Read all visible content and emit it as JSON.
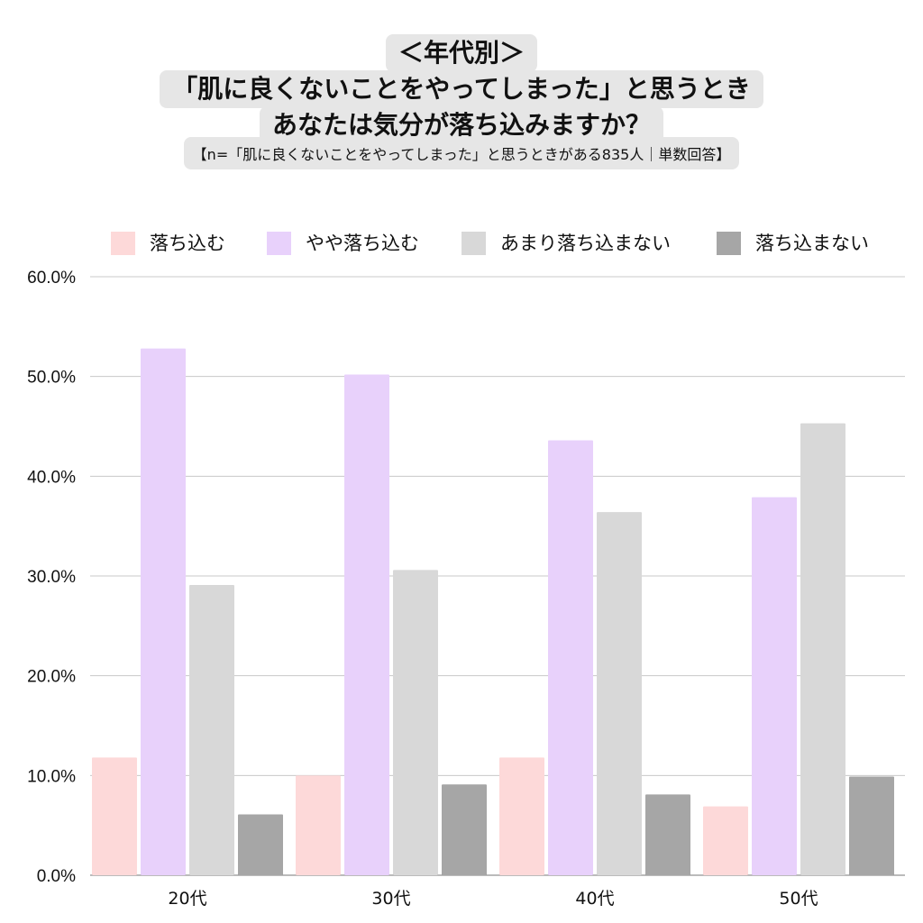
{
  "title": {
    "line1": "＜年代別＞",
    "line2": "「肌に良くないことをやってしまった」と思うとき",
    "line3": "あなたは気分が落ち込みますか？",
    "note": "【n=「肌に良くないことをやってしまった」と思うときがある835人｜単数回答】"
  },
  "chart_data": {
    "type": "bar",
    "categories": [
      "20代",
      "30代",
      "40代",
      "50代"
    ],
    "series": [
      {
        "name": "落ち込む",
        "color": "#fdd9d9",
        "values": [
          11.8,
          10.0,
          11.8,
          6.9
        ]
      },
      {
        "name": "やや落ち込む",
        "color": "#e8d1fb",
        "values": [
          52.8,
          50.2,
          43.6,
          37.9
        ]
      },
      {
        "name": "あまり落ち込まない",
        "color": "#d8d8d8",
        "values": [
          29.1,
          30.6,
          36.4,
          45.3
        ]
      },
      {
        "name": "落ち込まない",
        "color": "#a6a6a6",
        "values": [
          6.1,
          9.1,
          8.1,
          9.9
        ]
      }
    ],
    "ylim": [
      0,
      60
    ],
    "yticks": [
      "0.0%",
      "10.0%",
      "20.0%",
      "30.0%",
      "40.0%",
      "50.0%",
      "60.0%"
    ],
    "ytick_values": [
      0,
      10,
      20,
      30,
      40,
      50,
      60
    ],
    "grid": true,
    "legend": "top"
  }
}
